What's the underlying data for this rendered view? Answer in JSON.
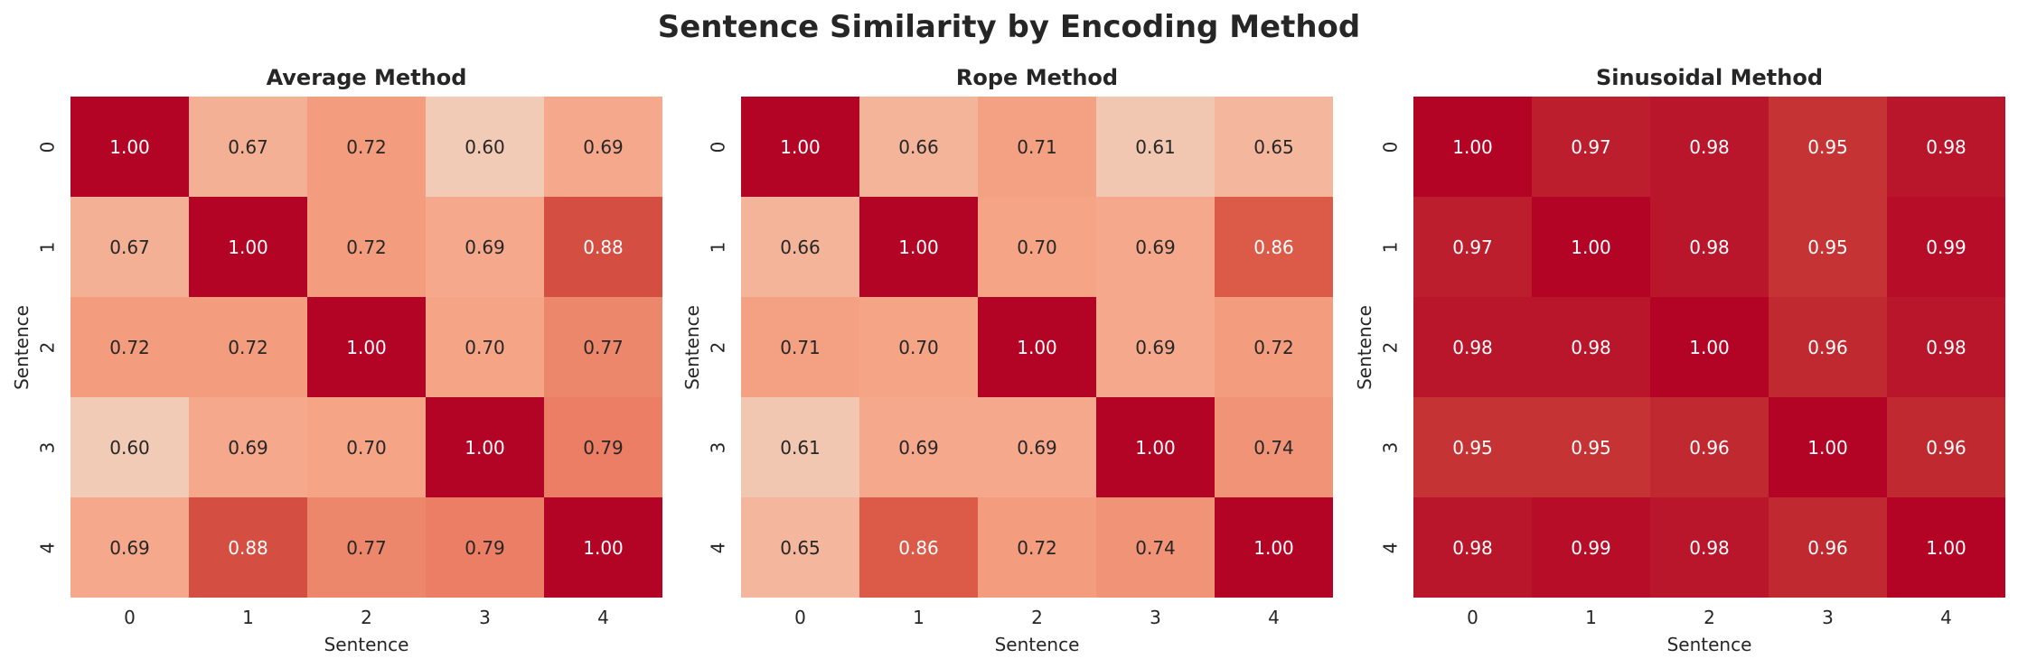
{
  "suptitle": "Sentence Similarity by Encoding Method",
  "colormap": {
    "name": "coolwarm",
    "vmin": 0,
    "vmax": 1,
    "low": "#3b4cc0",
    "mid": "#dddddd",
    "high": "#b40426"
  },
  "text_colors": {
    "dark": "#262626",
    "light": "#ffffff"
  },
  "chart_data": [
    {
      "type": "heatmap",
      "title": "Average Method",
      "xlabel": "Sentence",
      "ylabel": "Sentence",
      "x_ticks": [
        "0",
        "1",
        "2",
        "3",
        "4"
      ],
      "y_ticks": [
        "0",
        "1",
        "2",
        "3",
        "4"
      ],
      "values": [
        [
          1.0,
          0.67,
          0.72,
          0.6,
          0.69
        ],
        [
          0.67,
          1.0,
          0.72,
          0.69,
          0.88
        ],
        [
          0.72,
          0.72,
          1.0,
          0.7,
          0.77
        ],
        [
          0.6,
          0.69,
          0.7,
          1.0,
          0.79
        ],
        [
          0.69,
          0.88,
          0.77,
          0.79,
          1.0
        ]
      ],
      "colorbar": false
    },
    {
      "type": "heatmap",
      "title": "Rope Method",
      "xlabel": "Sentence",
      "ylabel": "Sentence",
      "x_ticks": [
        "0",
        "1",
        "2",
        "3",
        "4"
      ],
      "y_ticks": [
        "0",
        "1",
        "2",
        "3",
        "4"
      ],
      "values": [
        [
          1.0,
          0.66,
          0.71,
          0.61,
          0.65
        ],
        [
          0.66,
          1.0,
          0.7,
          0.69,
          0.86
        ],
        [
          0.71,
          0.7,
          1.0,
          0.69,
          0.72
        ],
        [
          0.61,
          0.69,
          0.69,
          1.0,
          0.74
        ],
        [
          0.65,
          0.86,
          0.72,
          0.74,
          1.0
        ]
      ],
      "colorbar": false
    },
    {
      "type": "heatmap",
      "title": "Sinusoidal Method",
      "xlabel": "Sentence",
      "ylabel": "Sentence",
      "x_ticks": [
        "0",
        "1",
        "2",
        "3",
        "4"
      ],
      "y_ticks": [
        "0",
        "1",
        "2",
        "3",
        "4"
      ],
      "values": [
        [
          1.0,
          0.97,
          0.98,
          0.95,
          0.98
        ],
        [
          0.97,
          1.0,
          0.98,
          0.95,
          0.99
        ],
        [
          0.98,
          0.98,
          1.0,
          0.96,
          0.98
        ],
        [
          0.95,
          0.95,
          0.96,
          1.0,
          0.96
        ],
        [
          0.98,
          0.99,
          0.98,
          0.96,
          1.0
        ]
      ],
      "colorbar": false
    }
  ]
}
